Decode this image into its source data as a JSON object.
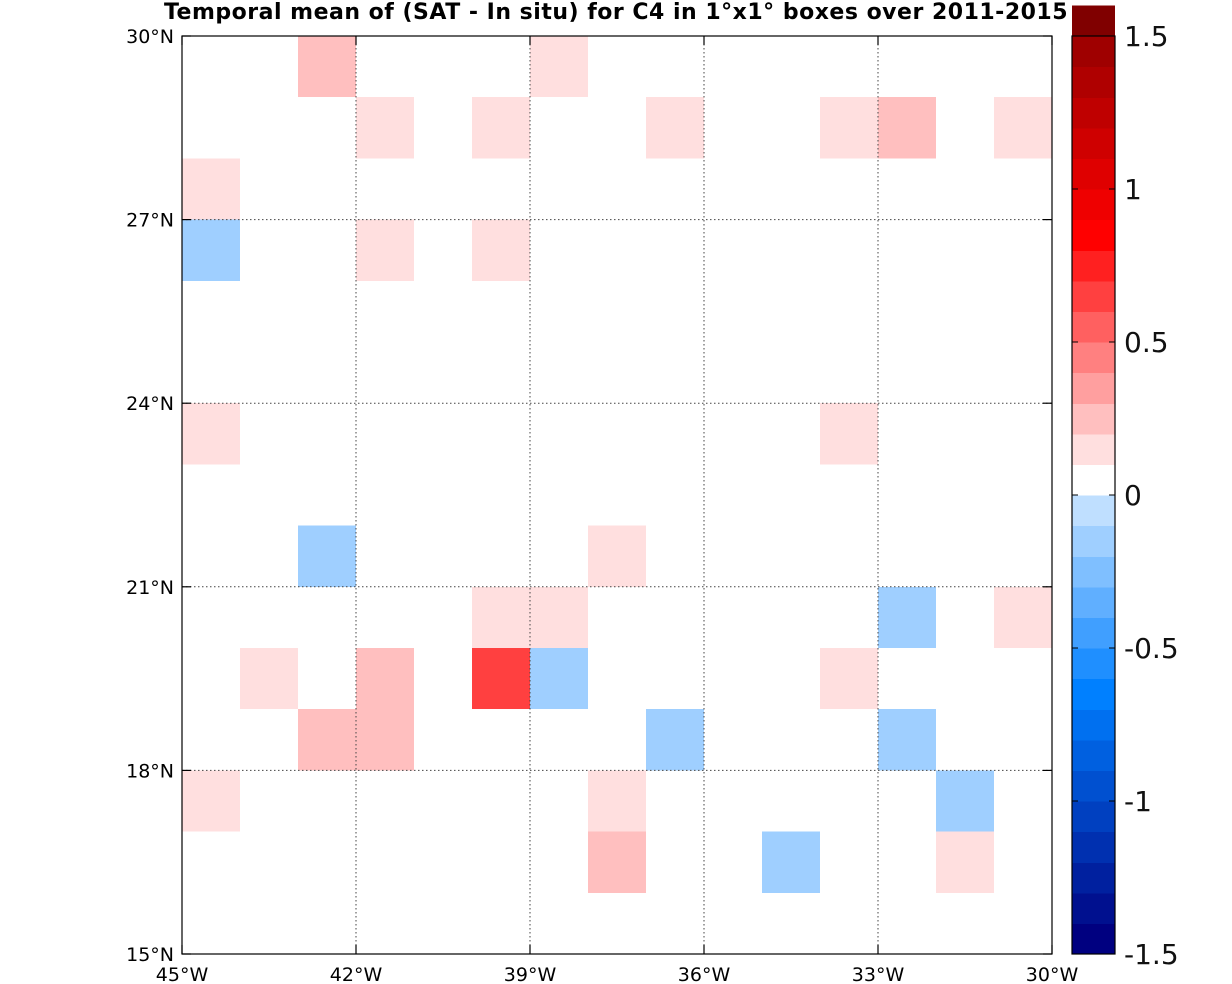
{
  "chart_data": {
    "type": "heatmap",
    "title": "Temporal mean of (SAT - In situ) for C4 in 1°x1° boxes over 2011-2015",
    "x_ticks": [
      "45°W",
      "42°W",
      "39°W",
      "36°W",
      "33°W",
      "30°W"
    ],
    "y_ticks": [
      "30°N",
      "27°N",
      "24°N",
      "21°N",
      "18°N",
      "15°N"
    ],
    "xlim": [
      -45,
      -30
    ],
    "ylim": [
      15,
      30
    ],
    "grid": true,
    "cell_size_deg": 1,
    "colorbar": {
      "min": -1.5,
      "max": 1.5,
      "step": 0.1,
      "tick_values": [
        1.5,
        1,
        0.5,
        0,
        -0.5,
        -1,
        -1.5
      ],
      "tick_labels": [
        "1.5",
        "1",
        "0.5",
        "0",
        "-0.5",
        "-1",
        "-1.5"
      ],
      "colors": [
        "#000080",
        "#00108f",
        "#00209f",
        "#0030b0",
        "#0040c0",
        "#0050d0",
        "#0060e0",
        "#0070f0",
        "#0080ff",
        "#1f8fff",
        "#409fff",
        "#60afff",
        "#7fbfff",
        "#9fcfff",
        "#bfdfff",
        "#ffffff",
        "#ffdfdf",
        "#ffbfbf",
        "#ff9f9f",
        "#ff8080",
        "#ff6060",
        "#ff4040",
        "#ff2020",
        "#ff0000",
        "#ef0000",
        "#df0000",
        "#cf0000",
        "#bf0000",
        "#af0000",
        "#9f0000",
        "#800000"
      ]
    },
    "cells": [
      {
        "lon": -43,
        "lat": 29,
        "value": 0.25
      },
      {
        "lon": -39,
        "lat": 29,
        "value": 0.15
      },
      {
        "lon": -42,
        "lat": 28,
        "value": 0.15
      },
      {
        "lon": -40,
        "lat": 28,
        "value": 0.15
      },
      {
        "lon": -37,
        "lat": 28,
        "value": 0.15
      },
      {
        "lon": -34,
        "lat": 28,
        "value": 0.15
      },
      {
        "lon": -33,
        "lat": 28,
        "value": 0.25
      },
      {
        "lon": -31,
        "lat": 28,
        "value": 0.15
      },
      {
        "lon": -45,
        "lat": 27,
        "value": 0.15
      },
      {
        "lon": -45,
        "lat": 26,
        "value": -0.15
      },
      {
        "lon": -42,
        "lat": 26,
        "value": 0.15
      },
      {
        "lon": -40,
        "lat": 26,
        "value": 0.15
      },
      {
        "lon": -45,
        "lat": 23,
        "value": 0.15
      },
      {
        "lon": -34,
        "lat": 23,
        "value": 0.15
      },
      {
        "lon": -43,
        "lat": 21,
        "value": -0.15
      },
      {
        "lon": -38,
        "lat": 21,
        "value": 0.15
      },
      {
        "lon": -40,
        "lat": 20,
        "value": 0.15
      },
      {
        "lon": -39,
        "lat": 20,
        "value": 0.15
      },
      {
        "lon": -33,
        "lat": 20,
        "value": -0.15
      },
      {
        "lon": -31,
        "lat": 20,
        "value": 0.15
      },
      {
        "lon": -44,
        "lat": 19,
        "value": 0.15
      },
      {
        "lon": -42,
        "lat": 19,
        "value": 0.25
      },
      {
        "lon": -40,
        "lat": 19,
        "value": 0.65
      },
      {
        "lon": -39,
        "lat": 19,
        "value": -0.15
      },
      {
        "lon": -34,
        "lat": 19,
        "value": 0.15
      },
      {
        "lon": -43,
        "lat": 18,
        "value": 0.25
      },
      {
        "lon": -42,
        "lat": 18,
        "value": 0.25
      },
      {
        "lon": -37,
        "lat": 18,
        "value": -0.15
      },
      {
        "lon": -33,
        "lat": 18,
        "value": -0.15
      },
      {
        "lon": -45,
        "lat": 17,
        "value": 0.15
      },
      {
        "lon": -38,
        "lat": 17,
        "value": 0.15
      },
      {
        "lon": -32,
        "lat": 17,
        "value": -0.15
      },
      {
        "lon": -38,
        "lat": 16,
        "value": 0.25
      },
      {
        "lon": -35,
        "lat": 16,
        "value": -0.15
      },
      {
        "lon": -32,
        "lat": 16,
        "value": 0.15
      }
    ]
  }
}
